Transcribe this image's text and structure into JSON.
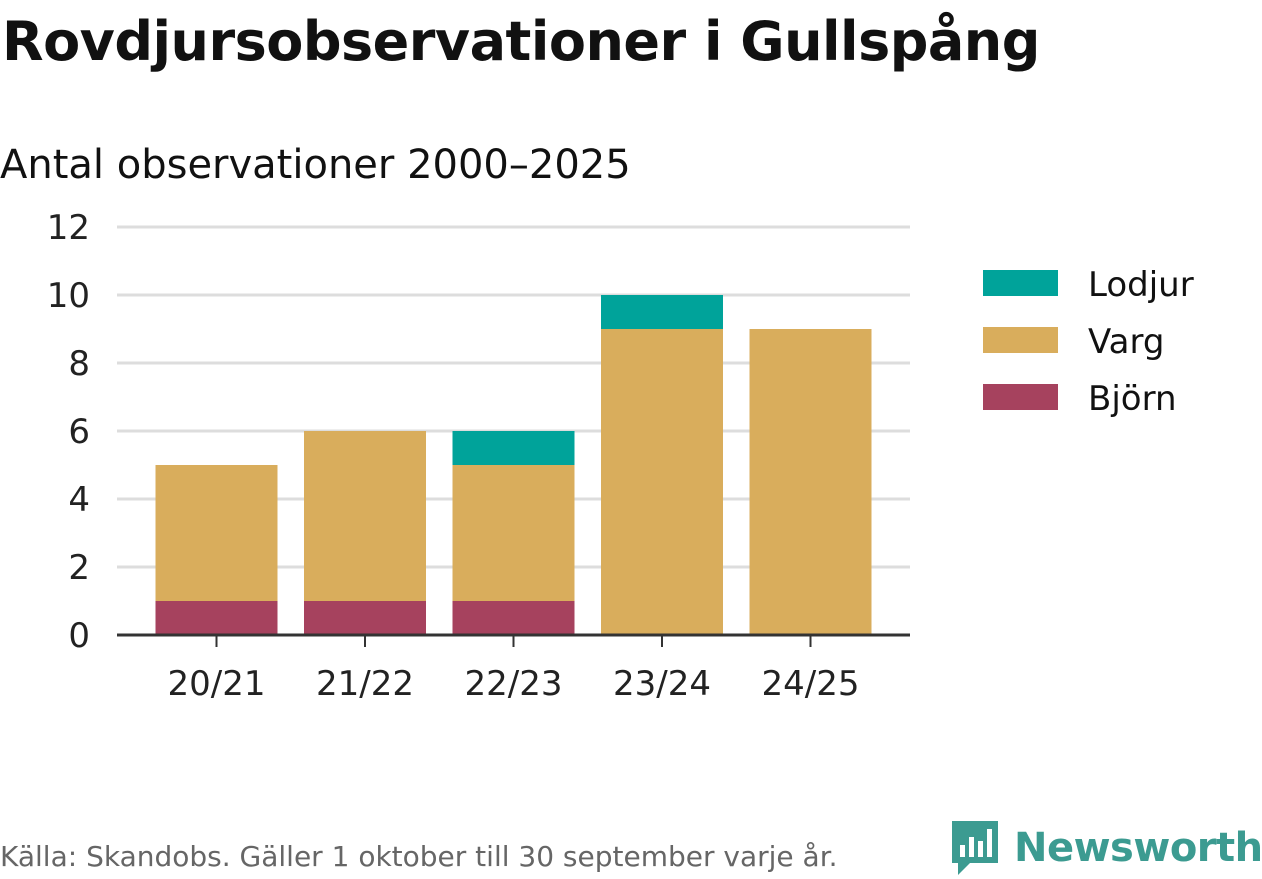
{
  "header": {
    "title": "Rovdjursobservationer i Gullspång",
    "subtitle": "Antal observationer 2000–2025"
  },
  "footer": {
    "source": "Källa: Skandobs. Gäller 1 oktober till 30 september varje år.",
    "brand": "Newsworthy"
  },
  "colors": {
    "lodjur": "#00a39a",
    "varg": "#d9ad5c",
    "bjorn": "#a6425e",
    "grid": "#dddddd",
    "axis": "#333333",
    "brand": "#3c9b91"
  },
  "chart_data": {
    "type": "bar",
    "stacked": true,
    "title": "Rovdjursobservationer i Gullspång",
    "subtitle": "Antal observationer 2000–2025",
    "xlabel": "",
    "ylabel": "",
    "ylim": [
      0,
      12
    ],
    "yticks": [
      0,
      2,
      4,
      6,
      8,
      10,
      12
    ],
    "categories": [
      "20/21",
      "21/22",
      "22/23",
      "23/24",
      "24/25"
    ],
    "series": [
      {
        "name": "Björn",
        "color_key": "bjorn",
        "values": [
          1,
          1,
          1,
          0,
          0
        ]
      },
      {
        "name": "Varg",
        "color_key": "varg",
        "values": [
          4,
          5,
          4,
          9,
          9
        ]
      },
      {
        "name": "Lodjur",
        "color_key": "lodjur",
        "values": [
          0,
          0,
          1,
          1,
          0
        ]
      }
    ],
    "legend": {
      "position": "right",
      "order": [
        "Lodjur",
        "Varg",
        "Björn"
      ]
    },
    "grid": true
  }
}
